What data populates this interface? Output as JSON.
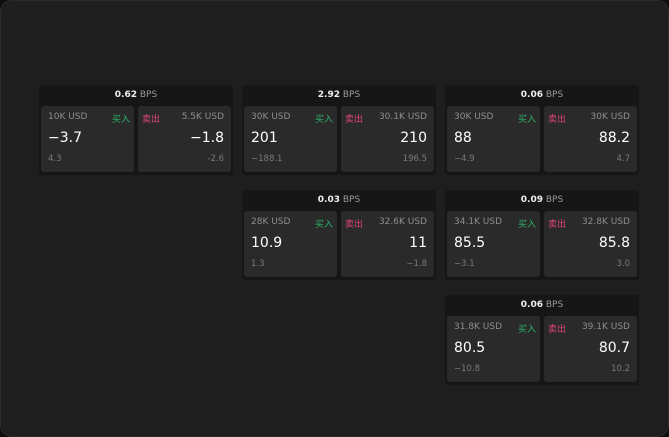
{
  "unit": "BPS",
  "buy_label": "买入",
  "sell_label": "卖出",
  "colors": {
    "buy": "#2fb36a",
    "sell": "#e0457a",
    "background": "#1e1e1e"
  },
  "cards": [
    {
      "spread": "0.62",
      "buy": {
        "amount": "10K USD",
        "price": "−3.7",
        "change": "4.3"
      },
      "sell": {
        "amount": "5.5K USD",
        "price": "−1.8",
        "change": "-2.6"
      }
    },
    {
      "spread": "2.92",
      "buy": {
        "amount": "30K USD",
        "price": "201",
        "change": "−188.1"
      },
      "sell": {
        "amount": "30.1K USD",
        "price": "210",
        "change": "196.5"
      }
    },
    {
      "spread": "0.06",
      "buy": {
        "amount": "30K USD",
        "price": "88",
        "change": "−4.9"
      },
      "sell": {
        "amount": "30K USD",
        "price": "88.2",
        "change": "4.7"
      }
    },
    {
      "spread": "0.03",
      "buy": {
        "amount": "28K USD",
        "price": "10.9",
        "change": "1.3"
      },
      "sell": {
        "amount": "32.6K USD",
        "price": "11",
        "change": "−1.8"
      }
    },
    {
      "spread": "0.09",
      "buy": {
        "amount": "34.1K USD",
        "price": "85.5",
        "change": "−3.1"
      },
      "sell": {
        "amount": "32.8K USD",
        "price": "85.8",
        "change": "3.0"
      }
    },
    {
      "spread": "0.06",
      "buy": {
        "amount": "31.8K USD",
        "price": "80.5",
        "change": "−10.8"
      },
      "sell": {
        "amount": "39.1K USD",
        "price": "80.7",
        "change": "10.2"
      }
    }
  ]
}
